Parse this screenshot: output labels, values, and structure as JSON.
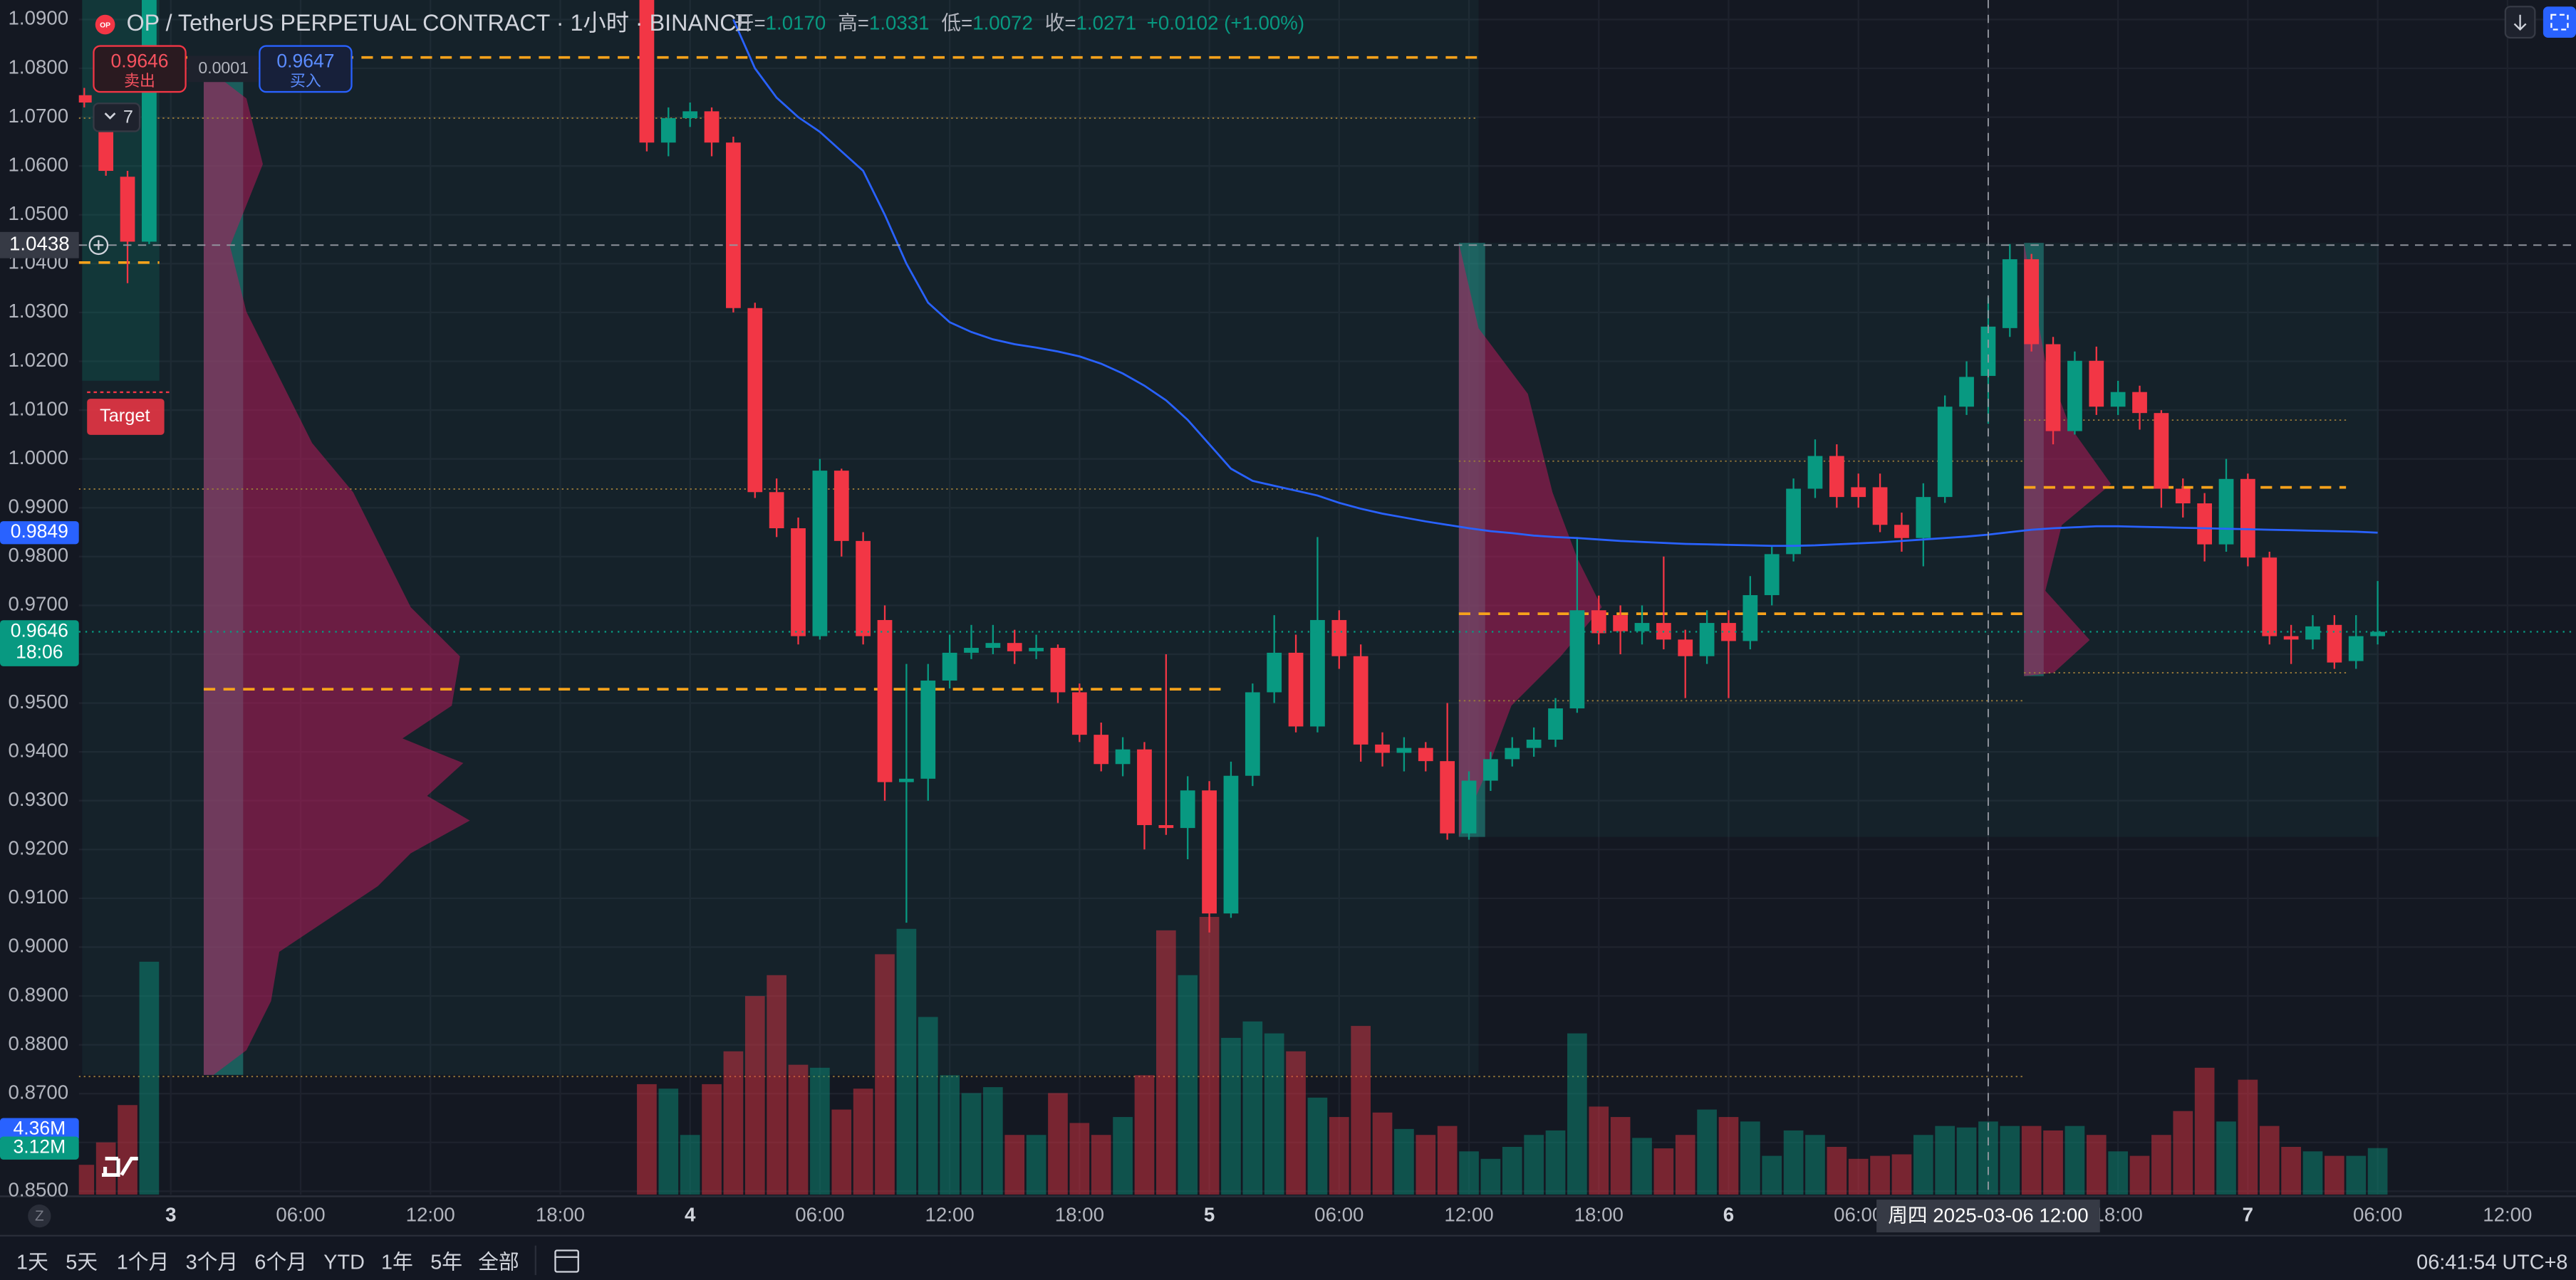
{
  "chart_data": {
    "type": "candlestick",
    "title": "OP / TetherUS PERPETUAL CONTRACT · 1小时 · BINANCE",
    "symbol_icon": "OP",
    "up_color": "#089981",
    "down_color": "#f23645",
    "grid": true,
    "xlim": [
      "2025-03-02 19:45",
      "2025-03-07 15:10"
    ],
    "ylim": [
      0.8493,
      1.094
    ],
    "y2lim": [
      0,
      80
    ],
    "yticks": [
      {
        "value": 0.85,
        "label": "0.8500"
      },
      {
        "value": 0.86,
        "label": "0.8600"
      },
      {
        "value": 0.87,
        "label": "0.8700"
      },
      {
        "value": 0.88,
        "label": "0.8800"
      },
      {
        "value": 0.89,
        "label": "0.8900"
      },
      {
        "value": 0.9,
        "label": "0.9000"
      },
      {
        "value": 0.91,
        "label": "0.9100"
      },
      {
        "value": 0.92,
        "label": "0.9200"
      },
      {
        "value": 0.93,
        "label": "0.9300"
      },
      {
        "value": 0.94,
        "label": "0.9400"
      },
      {
        "value": 0.95,
        "label": "0.9500"
      },
      {
        "value": 0.96,
        "label": "0.9600"
      },
      {
        "value": 0.97,
        "label": "0.9700"
      },
      {
        "value": 0.98,
        "label": "0.9800"
      },
      {
        "value": 0.99,
        "label": "0.9900"
      },
      {
        "value": 1.0,
        "label": "1.0000"
      },
      {
        "value": 1.01,
        "label": "1.0100"
      },
      {
        "value": 1.02,
        "label": "1.0200"
      },
      {
        "value": 1.03,
        "label": "1.0300"
      },
      {
        "value": 1.04,
        "label": "1.0400"
      },
      {
        "value": 1.05,
        "label": "1.0500"
      },
      {
        "value": 1.06,
        "label": "1.0600"
      },
      {
        "value": 1.07,
        "label": "1.0700"
      },
      {
        "value": 1.08,
        "label": "1.0800"
      },
      {
        "value": 1.09,
        "label": "1.0900"
      }
    ],
    "xticks": [
      {
        "value": "2025-03-03 00:00",
        "label": "3"
      },
      {
        "value": "2025-03-03 06:00",
        "label": "06:00"
      },
      {
        "value": "2025-03-03 12:00",
        "label": "12:00"
      },
      {
        "value": "2025-03-03 18:00",
        "label": "18:00"
      },
      {
        "value": "2025-03-04 00:00",
        "label": "4"
      },
      {
        "value": "2025-03-04 06:00",
        "label": "06:00"
      },
      {
        "value": "2025-03-04 12:00",
        "label": "12:00"
      },
      {
        "value": "2025-03-04 18:00",
        "label": "18:00"
      },
      {
        "value": "2025-03-05 00:00",
        "label": "5"
      },
      {
        "value": "2025-03-05 06:00",
        "label": "06:00"
      },
      {
        "value": "2025-03-05 12:00",
        "label": "12:00"
      },
      {
        "value": "2025-03-05 18:00",
        "label": "18:00"
      },
      {
        "value": "2025-03-06 00:00",
        "label": "6"
      },
      {
        "value": "2025-03-06 06:00",
        "label": "06:00"
      },
      {
        "value": "2025-03-06 12:00",
        "label": "12:00"
      },
      {
        "value": "2025-03-06 18:00",
        "label": "18:00"
      },
      {
        "value": "2025-03-07 00:00",
        "label": "7"
      },
      {
        "value": "2025-03-07 06:00",
        "label": "06:00"
      },
      {
        "value": "2025-03-07 12:00",
        "label": "12:00"
      }
    ],
    "x": [
      "2025-03-02 20:00",
      "2025-03-02 21:00",
      "2025-03-02 22:00",
      "2025-03-02 23:00",
      "2025-03-03 22:00",
      "2025-03-03 23:00",
      "2025-03-04 00:00",
      "2025-03-04 01:00",
      "2025-03-04 02:00",
      "2025-03-04 03:00",
      "2025-03-04 04:00",
      "2025-03-04 05:00",
      "2025-03-04 06:00",
      "2025-03-04 07:00",
      "2025-03-04 08:00",
      "2025-03-04 09:00",
      "2025-03-04 10:00",
      "2025-03-04 11:00",
      "2025-03-04 12:00",
      "2025-03-04 13:00",
      "2025-03-04 14:00",
      "2025-03-04 15:00",
      "2025-03-04 16:00",
      "2025-03-04 17:00",
      "2025-03-04 18:00",
      "2025-03-04 19:00",
      "2025-03-04 20:00",
      "2025-03-04 21:00",
      "2025-03-04 22:00",
      "2025-03-04 23:00",
      "2025-03-05 00:00",
      "2025-03-05 01:00",
      "2025-03-05 02:00",
      "2025-03-05 03:00",
      "2025-03-05 04:00",
      "2025-03-05 05:00",
      "2025-03-05 06:00",
      "2025-03-05 07:00",
      "2025-03-05 08:00",
      "2025-03-05 09:00",
      "2025-03-05 10:00",
      "2025-03-05 11:00",
      "2025-03-05 12:00",
      "2025-03-05 13:00",
      "2025-03-05 14:00",
      "2025-03-05 15:00",
      "2025-03-05 16:00",
      "2025-03-05 17:00",
      "2025-03-05 18:00",
      "2025-03-05 19:00",
      "2025-03-05 20:00",
      "2025-03-05 21:00",
      "2025-03-05 22:00",
      "2025-03-05 23:00",
      "2025-03-06 00:00",
      "2025-03-06 01:00",
      "2025-03-06 02:00",
      "2025-03-06 03:00",
      "2025-03-06 04:00",
      "2025-03-06 05:00",
      "2025-03-06 06:00",
      "2025-03-06 07:00",
      "2025-03-06 08:00",
      "2025-03-06 09:00",
      "2025-03-06 10:00",
      "2025-03-06 11:00",
      "2025-03-06 12:00",
      "2025-03-06 13:00",
      "2025-03-06 14:00",
      "2025-03-06 15:00",
      "2025-03-06 16:00",
      "2025-03-06 17:00",
      "2025-03-06 18:00",
      "2025-03-06 19:00",
      "2025-03-06 20:00",
      "2025-03-06 21:00",
      "2025-03-06 22:00",
      "2025-03-06 23:00",
      "2025-03-07 00:00",
      "2025-03-07 01:00",
      "2025-03-07 02:00",
      "2025-03-07 03:00",
      "2025-03-07 04:00",
      "2025-03-07 05:00",
      "2025-03-07 06:00"
    ],
    "open": [
      1.0745,
      1.068,
      1.0578,
      1.0445,
      1.094,
      1.0648,
      1.0698,
      1.0712,
      1.0648,
      1.0309,
      0.9932,
      0.9858,
      0.9637,
      0.9976,
      0.9832,
      0.967,
      0.9338,
      0.9345,
      0.9546,
      0.9603,
      0.9613,
      0.9623,
      0.9606,
      0.9613,
      0.9522,
      0.9435,
      0.9375,
      0.9405,
      0.925,
      0.9244,
      0.9321,
      0.9069,
      0.9351,
      0.9522,
      0.9603,
      0.9452,
      0.967,
      0.9596,
      0.9415,
      0.9398,
      0.9408,
      0.9381,
      0.9233,
      0.9341,
      0.9385,
      0.9408,
      0.9425,
      0.9489,
      0.969,
      0.968,
      0.9647,
      0.9664,
      0.963,
      0.9596,
      0.9664,
      0.9627,
      0.9721,
      0.9805,
      0.9939,
      1.0006,
      0.9942,
      0.9942,
      0.9865,
      0.9838,
      0.9922,
      1.0107,
      1.017,
      1.0268,
      1.0409,
      1.0235,
      1.0057,
      1.0201,
      1.0107,
      1.0137,
      1.0094,
      0.9939,
      0.9909,
      0.9825,
      0.9959,
      0.9798,
      0.9637,
      0.963,
      0.966,
      0.9586,
      0.9637
    ],
    "high": [
      1.076,
      1.07,
      1.059,
      1.099,
      1.0945,
      1.072,
      1.073,
      1.072,
      1.066,
      1.032,
      0.996,
      0.988,
      1.0,
      0.998,
      0.985,
      0.97,
      0.958,
      0.958,
      0.964,
      0.966,
      0.966,
      0.965,
      0.964,
      0.962,
      0.954,
      0.946,
      0.943,
      0.942,
      0.96,
      0.935,
      0.934,
      0.938,
      0.954,
      0.968,
      0.964,
      0.984,
      0.969,
      0.962,
      0.944,
      0.943,
      0.942,
      0.95,
      0.936,
      0.94,
      0.943,
      0.945,
      0.951,
      0.984,
      0.972,
      0.97,
      0.97,
      0.98,
      0.965,
      0.969,
      0.969,
      0.976,
      0.982,
      0.996,
      1.004,
      1.003,
      0.997,
      0.997,
      0.989,
      0.995,
      1.013,
      1.02,
      1.0331,
      1.044,
      1.042,
      1.025,
      1.022,
      1.023,
      1.016,
      1.015,
      1.01,
      0.996,
      0.993,
      1.0,
      0.997,
      0.981,
      0.966,
      0.968,
      0.968,
      0.968,
      0.975
    ],
    "low": [
      1.072,
      1.058,
      1.036,
      1.044,
      1.063,
      1.062,
      1.068,
      1.062,
      1.03,
      0.992,
      0.984,
      0.962,
      0.963,
      0.98,
      0.962,
      0.93,
      0.905,
      0.93,
      0.953,
      0.959,
      0.96,
      0.958,
      0.959,
      0.95,
      0.942,
      0.936,
      0.935,
      0.92,
      0.923,
      0.918,
      0.903,
      0.906,
      0.933,
      0.95,
      0.944,
      0.944,
      0.957,
      0.938,
      0.937,
      0.936,
      0.936,
      0.922,
      0.922,
      0.932,
      0.937,
      0.939,
      0.941,
      0.948,
      0.962,
      0.96,
      0.962,
      0.961,
      0.951,
      0.958,
      0.951,
      0.961,
      0.97,
      0.979,
      0.992,
      0.99,
      0.99,
      0.985,
      0.981,
      0.978,
      0.991,
      1.009,
      1.0072,
      1.025,
      1.022,
      1.003,
      1.005,
      1.009,
      1.009,
      1.006,
      0.99,
      0.988,
      0.979,
      0.981,
      0.978,
      0.962,
      0.958,
      0.961,
      0.957,
      0.957,
      0.962
    ],
    "close": [
      1.073,
      1.059,
      1.0445,
      1.096,
      1.0648,
      1.0698,
      1.0712,
      1.0648,
      1.0309,
      0.9932,
      0.9858,
      0.9637,
      0.9976,
      0.9832,
      0.9637,
      0.9338,
      0.9345,
      0.9546,
      0.9603,
      0.9613,
      0.9623,
      0.9606,
      0.9613,
      0.9522,
      0.9435,
      0.9375,
      0.9405,
      0.925,
      0.9244,
      0.9321,
      0.9069,
      0.9351,
      0.9522,
      0.9603,
      0.9452,
      0.967,
      0.9596,
      0.9415,
      0.9398,
      0.9408,
      0.9381,
      0.9233,
      0.9341,
      0.9385,
      0.9408,
      0.9425,
      0.9489,
      0.969,
      0.9643,
      0.9647,
      0.9664,
      0.963,
      0.9596,
      0.9664,
      0.9627,
      0.9721,
      0.9805,
      0.9939,
      1.0006,
      0.9922,
      0.9922,
      0.9865,
      0.9838,
      0.9922,
      1.0107,
      1.0168,
      1.0271,
      1.0409,
      1.0235,
      1.0057,
      1.0201,
      1.0107,
      1.0137,
      1.0094,
      0.9939,
      0.9909,
      0.9825,
      0.9959,
      0.9798,
      0.9637,
      0.963,
      0.9657,
      0.9583,
      0.9637,
      0.9646
    ],
    "volume": [
      2.0,
      3.5,
      6.0,
      15.6,
      7.4,
      7.1,
      4.0,
      7.4,
      9.6,
      13.3,
      14.7,
      8.7,
      8.5,
      5.7,
      7.1,
      16.1,
      17.8,
      11.9,
      8.0,
      6.8,
      7.2,
      4.0,
      4.0,
      6.8,
      4.8,
      4.0,
      5.2,
      8.0,
      17.7,
      14.7,
      18.6,
      10.5,
      11.6,
      10.8,
      9.6,
      6.5,
      5.2,
      11.3,
      5.5,
      4.4,
      4.0,
      4.6,
      2.9,
      2.4,
      3.2,
      4.0,
      4.3,
      10.8,
      5.9,
      5.2,
      3.8,
      3.1,
      4.0,
      5.7,
      5.2,
      4.9,
      2.6,
      4.3,
      4.0,
      3.2,
      2.4,
      2.6,
      2.7,
      4.0,
      4.6,
      4.5,
      4.9,
      4.6,
      4.6,
      4.3,
      4.6,
      4.0,
      2.9,
      2.6,
      4.0,
      5.6,
      8.5,
      4.9,
      7.7,
      4.6,
      3.2,
      2.9,
      2.6,
      2.6,
      3.12
    ],
    "ma": {
      "color": "#2962ff",
      "values": [
        null,
        null,
        null,
        null,
        null,
        null,
        null,
        null,
        1.09,
        1.08,
        1.074,
        1.07,
        1.067,
        1.063,
        1.059,
        1.05,
        1.04,
        1.032,
        1.028,
        1.026,
        1.0245,
        1.0235,
        1.0228,
        1.022,
        1.021,
        1.0195,
        1.0175,
        1.015,
        1.012,
        1.008,
        1.003,
        0.998,
        0.9955,
        0.9945,
        0.9935,
        0.9925,
        0.991,
        0.9898,
        0.9888,
        0.988,
        0.9872,
        0.9865,
        0.9858,
        0.9852,
        0.9848,
        0.9843,
        0.984,
        0.9838,
        0.9835,
        0.9832,
        0.983,
        0.9828,
        0.9826,
        0.9825,
        0.9824,
        0.9823,
        0.9822,
        0.9822,
        0.9823,
        0.9825,
        0.9827,
        0.9829,
        0.9832,
        0.9835,
        0.9838,
        0.9841,
        0.9845,
        0.985,
        0.9855,
        0.9858,
        0.986,
        0.9862,
        0.9862,
        0.9861,
        0.986,
        0.9859,
        0.9858,
        0.9857,
        0.9856,
        0.9855,
        0.9854,
        0.9853,
        0.9852,
        0.9851,
        0.9849
      ]
    },
    "crosshair": {
      "x": "2025-03-06 12:00",
      "y": 1.0438,
      "y_label": "1.0438",
      "x_label": "周四 2025-03-06  12:00",
      "ohlc_prefixes": [
        "开=",
        "高=",
        "低=",
        "收="
      ],
      "ohlc_labels": [
        "1.0170",
        "1.0331",
        "1.0072",
        "1.0271"
      ],
      "change_label": "+0.0102 (+1.00%)"
    },
    "axis_badges": [
      {
        "value": 0.9849,
        "label": "0.9849",
        "color": "#2962ff"
      },
      {
        "value": 0.9646,
        "label": "0.9646",
        "sublabel": "18:06",
        "color": "#089981",
        "line": true
      },
      {
        "value": 4.36,
        "label": "4.36M",
        "color": "#2962ff",
        "axis": "y2"
      },
      {
        "value": 3.12,
        "label": "3.12M",
        "color": "#089981",
        "axis": "y2"
      }
    ]
  },
  "trade": {
    "sell_price": "0.9646",
    "sell_label": "卖出",
    "spread": "0.0001",
    "buy_price": "0.9647",
    "buy_label": "买入"
  },
  "indicators_count": "7",
  "target_label": "Target",
  "axis_mode": "Z",
  "toolbar": {
    "ranges": [
      "1天",
      "5天",
      "1个月",
      "3个月",
      "6个月",
      "YTD",
      "1年",
      "5年",
      "全部"
    ],
    "time": "06:41:54 UTC+8"
  }
}
